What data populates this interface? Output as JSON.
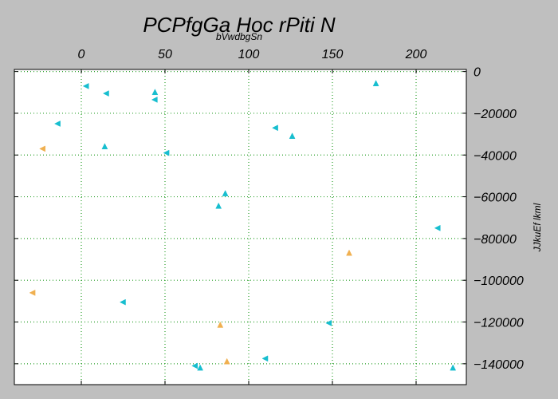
{
  "chart_data": {
    "type": "scatter",
    "title": "PCPfgGa Hoc rPiti N",
    "xlabel": "bVwdbgSn",
    "ylabel": "JJkuEf lkml",
    "xlim": [
      -40,
      230
    ],
    "ylim": [
      -150000,
      1000
    ],
    "x_ticks": [
      0,
      50,
      100,
      150,
      200
    ],
    "y_ticks": [
      0,
      -20000,
      -40000,
      -60000,
      -80000,
      -100000,
      -120000,
      -140000
    ],
    "x_axis_position": "top",
    "y_axis_position": "right",
    "y_axis_inverted": true,
    "grid": true,
    "grid_style": "dotted",
    "colors": {
      "cyan": "#17becf",
      "orange": "#f0b050",
      "grid": "#2ca02c",
      "background": "#bfbfbf"
    },
    "series": [
      {
        "color": "#17becf",
        "points": [
          {
            "x": 3,
            "y": -7000,
            "marker": "left-triangle"
          },
          {
            "x": 15,
            "y": -10500,
            "marker": "left-triangle"
          },
          {
            "x": 44,
            "y": -10000,
            "marker": "up-triangle"
          },
          {
            "x": 44,
            "y": -13500,
            "marker": "left-triangle"
          },
          {
            "x": 176,
            "y": -5800,
            "marker": "up-triangle"
          },
          {
            "x": -14,
            "y": -25000,
            "marker": "left-triangle"
          },
          {
            "x": 116,
            "y": -27000,
            "marker": "left-triangle"
          },
          {
            "x": 126,
            "y": -31000,
            "marker": "up-triangle"
          },
          {
            "x": 14,
            "y": -36000,
            "marker": "up-triangle"
          },
          {
            "x": 51,
            "y": -39000,
            "marker": "left-triangle"
          },
          {
            "x": 86,
            "y": -58500,
            "marker": "up-triangle"
          },
          {
            "x": 82,
            "y": -64500,
            "marker": "up-triangle"
          },
          {
            "x": 213,
            "y": -75000,
            "marker": "left-triangle"
          },
          {
            "x": 25,
            "y": -110500,
            "marker": "left-triangle"
          },
          {
            "x": 148,
            "y": -120500,
            "marker": "left-triangle"
          },
          {
            "x": 110,
            "y": -137500,
            "marker": "left-triangle"
          },
          {
            "x": 68,
            "y": -141000,
            "marker": "left-triangle"
          },
          {
            "x": 71,
            "y": -142000,
            "marker": "up-triangle"
          },
          {
            "x": 222,
            "y": -142000,
            "marker": "up-triangle"
          }
        ]
      },
      {
        "color": "#f0b050",
        "points": [
          {
            "x": -23,
            "y": -37000,
            "marker": "left-triangle"
          },
          {
            "x": 160,
            "y": -87000,
            "marker": "up-triangle"
          },
          {
            "x": -29,
            "y": -106000,
            "marker": "left-triangle"
          },
          {
            "x": 83,
            "y": -121500,
            "marker": "up-triangle"
          },
          {
            "x": 87,
            "y": -139000,
            "marker": "up-triangle"
          }
        ]
      }
    ]
  }
}
